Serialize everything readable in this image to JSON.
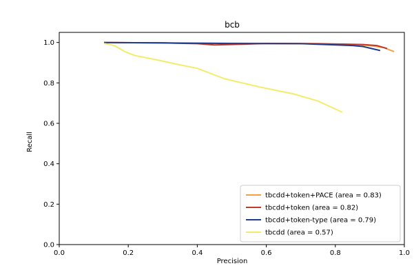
{
  "chart_data": {
    "type": "line",
    "title": "bcb",
    "xlabel": "Precision",
    "ylabel": "Recall",
    "xlim": [
      0.0,
      1.0
    ],
    "ylim": [
      0.0,
      1.05
    ],
    "xticks": [
      "0.0",
      "0.2",
      "0.4",
      "0.6",
      "0.8",
      "1.0"
    ],
    "yticks": [
      "0.0",
      "0.2",
      "0.4",
      "0.6",
      "0.8",
      "1.0"
    ],
    "grid": false,
    "legend_position": "lower-right",
    "series": [
      {
        "name": "tbcdd+token+PACE (area = 0.83)",
        "color": "#f5a040",
        "points": [
          [
            0.13,
            1.0
          ],
          [
            0.3,
            0.998
          ],
          [
            0.5,
            0.996
          ],
          [
            0.7,
            0.995
          ],
          [
            0.85,
            0.99
          ],
          [
            0.9,
            0.985
          ],
          [
            0.94,
            0.975
          ],
          [
            0.97,
            0.955
          ]
        ]
      },
      {
        "name": "tbcdd+token (area = 0.82)",
        "color": "#c0392b",
        "points": [
          [
            0.13,
            1.0
          ],
          [
            0.3,
            0.998
          ],
          [
            0.4,
            0.994
          ],
          [
            0.45,
            0.988
          ],
          [
            0.5,
            0.99
          ],
          [
            0.6,
            0.995
          ],
          [
            0.75,
            0.994
          ],
          [
            0.88,
            0.99
          ],
          [
            0.92,
            0.985
          ],
          [
            0.95,
            0.97
          ]
        ]
      },
      {
        "name": "tbcdd+token-type (area = 0.79)",
        "color": "#1f3b8c",
        "points": [
          [
            0.13,
            1.0
          ],
          [
            0.3,
            0.998
          ],
          [
            0.5,
            0.995
          ],
          [
            0.7,
            0.994
          ],
          [
            0.85,
            0.985
          ],
          [
            0.88,
            0.98
          ],
          [
            0.93,
            0.96
          ]
        ]
      },
      {
        "name": "tbcdd (area = 0.57)",
        "color": "#f3ec6a",
        "points": [
          [
            0.13,
            0.995
          ],
          [
            0.16,
            0.985
          ],
          [
            0.19,
            0.955
          ],
          [
            0.22,
            0.935
          ],
          [
            0.28,
            0.915
          ],
          [
            0.34,
            0.893
          ],
          [
            0.4,
            0.872
          ],
          [
            0.48,
            0.82
          ],
          [
            0.58,
            0.78
          ],
          [
            0.68,
            0.745
          ],
          [
            0.75,
            0.71
          ],
          [
            0.82,
            0.655
          ]
        ]
      }
    ]
  }
}
